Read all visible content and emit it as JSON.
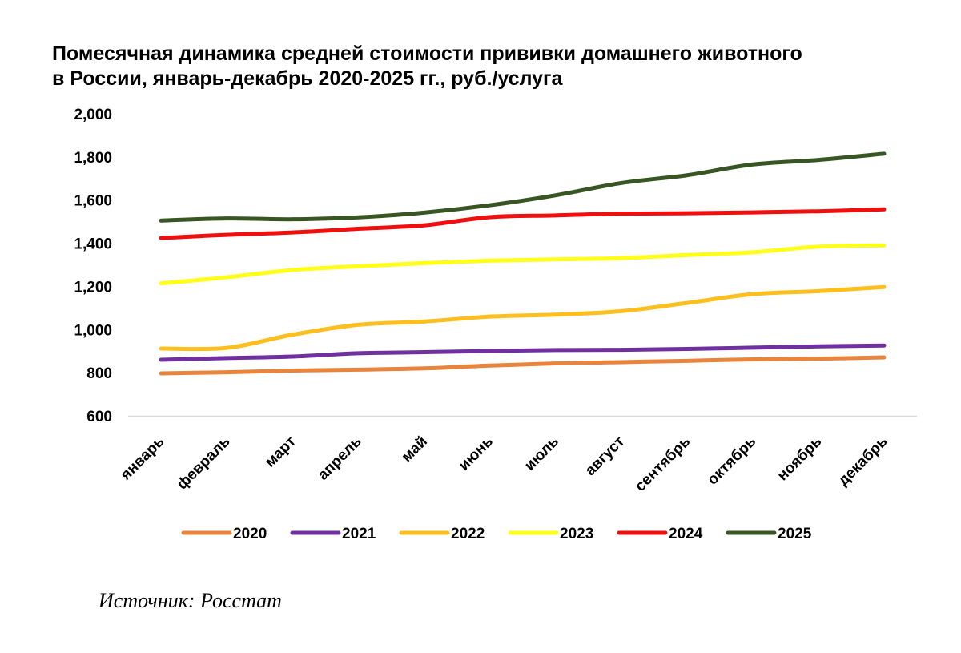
{
  "title": {
    "line1": "Помесячная динамика средней стоимости прививки домашнего животного",
    "line2": "в России, январь-декабрь 2020-2025 гг., руб./услуга"
  },
  "source": "Источник: Росстат",
  "chart_data": {
    "type": "line",
    "title": "Помесячная динамика средней стоимости прививки домашнего животного в России, январь-декабрь 2020-2025 гг., руб./услуга",
    "xlabel": "",
    "ylabel": "",
    "ylim": [
      600,
      2000
    ],
    "yticks": [
      600,
      800,
      1000,
      1200,
      1400,
      1600,
      1800,
      2000
    ],
    "ytick_labels": [
      "600",
      "800",
      "1,000",
      "1,200",
      "1,400",
      "1,600",
      "1,800",
      "2,000"
    ],
    "grid": false,
    "legend_position": "bottom",
    "categories": [
      "январь",
      "февраль",
      "март",
      "апрель",
      "май",
      "июнь",
      "июль",
      "август",
      "сентябрь",
      "октябрь",
      "ноябрь",
      "декабрь"
    ],
    "series": [
      {
        "name": "2020",
        "color": "#E8843C",
        "values": [
          797,
          802,
          810,
          814,
          820,
          833,
          843,
          849,
          855,
          862,
          865,
          871
        ]
      },
      {
        "name": "2021",
        "color": "#7030A0",
        "values": [
          860,
          868,
          875,
          890,
          895,
          901,
          905,
          906,
          910,
          916,
          922,
          926
        ]
      },
      {
        "name": "2022",
        "color": "#FDBF1D",
        "values": [
          912,
          915,
          976,
          1022,
          1037,
          1060,
          1069,
          1085,
          1123,
          1164,
          1178,
          1197
        ]
      },
      {
        "name": "2023",
        "color": "#FFFF1A",
        "values": [
          1214,
          1242,
          1276,
          1293,
          1308,
          1319,
          1325,
          1331,
          1345,
          1358,
          1384,
          1390
        ]
      },
      {
        "name": "2024",
        "color": "#F00F0F",
        "values": [
          1424,
          1439,
          1450,
          1467,
          1483,
          1521,
          1529,
          1537,
          1539,
          1543,
          1548,
          1557
        ]
      },
      {
        "name": "2025",
        "color": "#375623",
        "values": [
          1505,
          1515,
          1511,
          1520,
          1542,
          1576,
          1622,
          1679,
          1715,
          1765,
          1786,
          1815
        ]
      }
    ]
  }
}
